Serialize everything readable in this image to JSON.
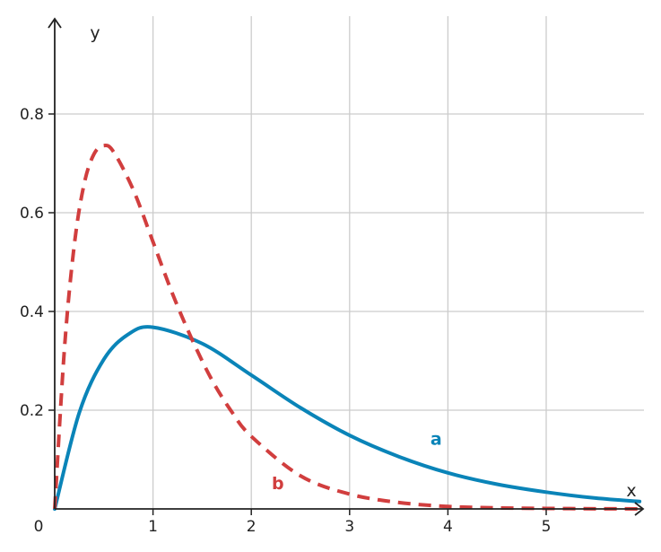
{
  "chart_data": {
    "type": "line",
    "xlabel": "x",
    "ylabel": "y",
    "origin_label": "0",
    "xlim": [
      0,
      6
    ],
    "ylim": [
      0,
      0.8
    ],
    "grid": true,
    "x_ticks": [
      1,
      2,
      3,
      4,
      5
    ],
    "x_tick_labels": [
      "1",
      "2",
      "3",
      "4",
      "5"
    ],
    "y_ticks": [
      0.2,
      0.4,
      0.6,
      0.8
    ],
    "y_tick_labels": [
      "0.2",
      "0.4",
      "0.6",
      "0.8"
    ],
    "series": [
      {
        "name": "a",
        "color": "#0a84b8",
        "style": "solid",
        "x": [
          0,
          0.25,
          0.5,
          0.75,
          1,
          1.5,
          2,
          2.5,
          3,
          3.5,
          4,
          4.5,
          5,
          5.5,
          5.95
        ],
        "y": [
          0,
          0.195,
          0.303,
          0.354,
          0.368,
          0.335,
          0.271,
          0.205,
          0.149,
          0.106,
          0.073,
          0.05,
          0.034,
          0.022,
          0.015
        ]
      },
      {
        "name": "b",
        "color": "#d13e3e",
        "style": "dashed",
        "x": [
          0,
          0.1,
          0.2,
          0.3,
          0.4,
          0.5,
          0.6,
          0.8,
          1,
          1.2,
          1.4,
          1.6,
          1.8,
          2,
          2.5,
          3,
          3.5,
          4,
          4.5,
          5,
          5.5,
          5.95
        ],
        "y": [
          0,
          0.327,
          0.536,
          0.659,
          0.719,
          0.736,
          0.723,
          0.646,
          0.541,
          0.435,
          0.342,
          0.261,
          0.197,
          0.147,
          0.067,
          0.03,
          0.013,
          0.005,
          0.002,
          0.001,
          0.0003,
          0.0001
        ]
      }
    ]
  }
}
